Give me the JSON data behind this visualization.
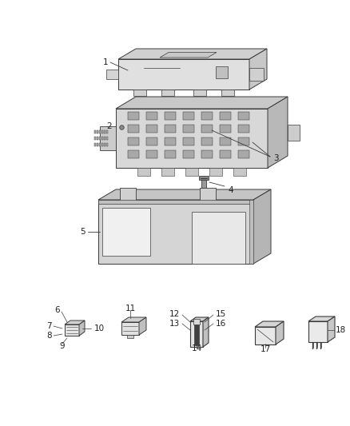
{
  "bg_color": "#ffffff",
  "line_color": "#3a3a3a",
  "text_color": "#222222",
  "label_fontsize": 7.5,
  "fig_width": 4.38,
  "fig_height": 5.33,
  "dpi": 100
}
